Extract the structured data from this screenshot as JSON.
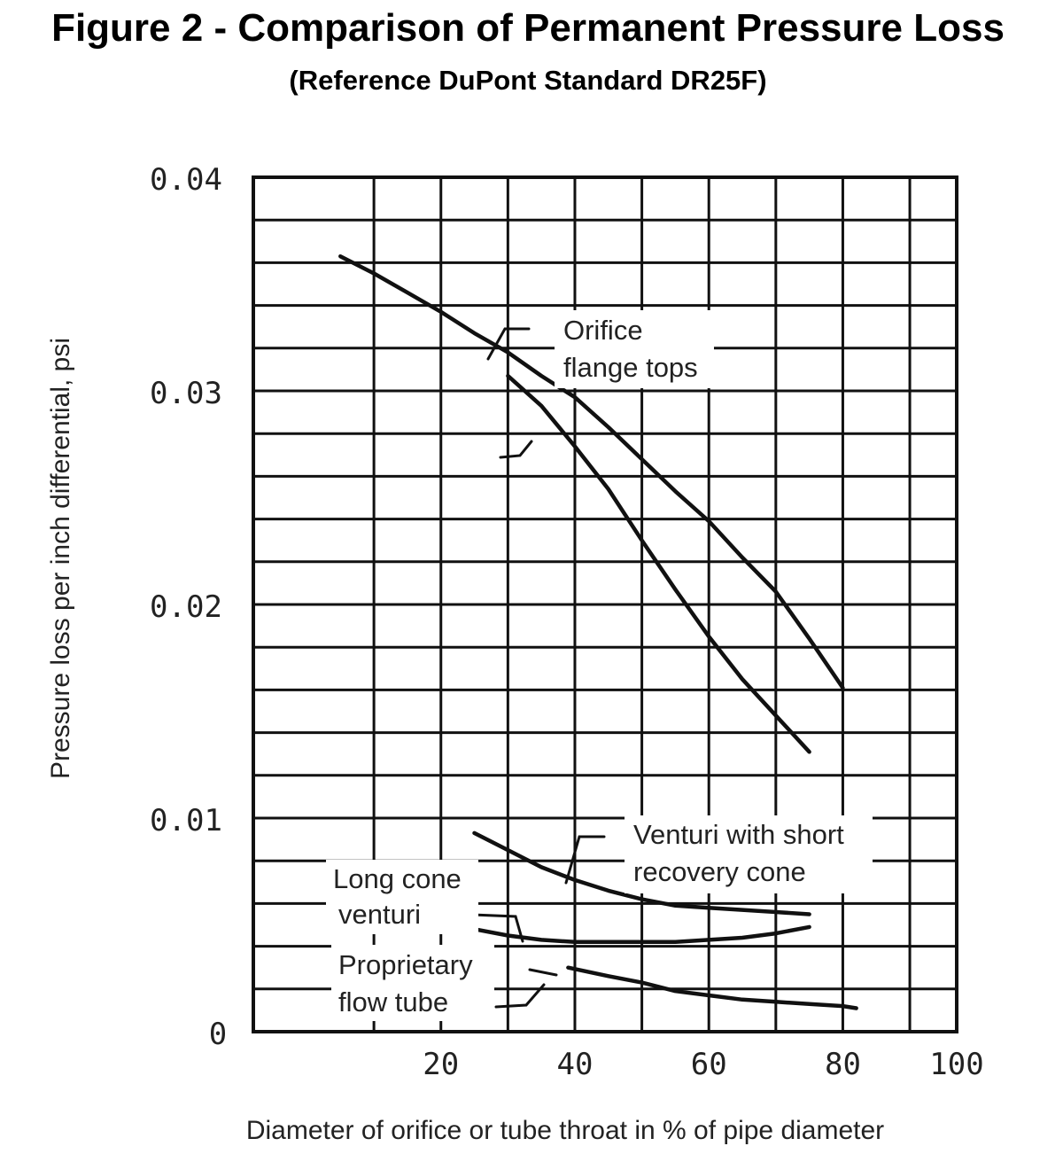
{
  "chart_data": {
    "type": "line",
    "title": "Figure 2 - Comparison of Permanent Pressure Loss",
    "subtitle": "(Reference DuPont Standard DR25F)",
    "xlabel": "Diameter of orifice or tube throat in % of pipe diameter",
    "ylabel": "Pressure loss per inch differential, psi",
    "xlim": [
      0,
      100
    ],
    "ylim": [
      0,
      0.04
    ],
    "x_ticks": [
      "20",
      "40",
      "60",
      "80",
      "100"
    ],
    "y_ticks": [
      "0",
      "0.01",
      "0.02",
      "0.03",
      "0.04"
    ],
    "grid": true,
    "legend": "none",
    "series": [
      {
        "name": "Orifice flange tops",
        "x": [
          5,
          10,
          15,
          20,
          25,
          30,
          35,
          40,
          45,
          50,
          55,
          60,
          65,
          70,
          75,
          80
        ],
        "y": [
          0.0363,
          0.0355,
          0.0346,
          0.0337,
          0.0327,
          0.0318,
          0.0307,
          0.0297,
          0.0283,
          0.0268,
          0.0253,
          0.0239,
          0.0222,
          0.0206,
          0.0184,
          0.0161
        ]
      },
      {
        "name": "",
        "x": [
          30,
          35,
          40,
          45,
          50,
          55,
          60,
          65,
          70,
          75
        ],
        "y": [
          0.0307,
          0.0293,
          0.0274,
          0.0254,
          0.023,
          0.0207,
          0.0185,
          0.0165,
          0.0148,
          0.0131
        ]
      },
      {
        "name": "Venturi with short recovery cone",
        "x": [
          25,
          30,
          35,
          40,
          45,
          50,
          55,
          60,
          65,
          70,
          75
        ],
        "y": [
          0.0093,
          0.0085,
          0.0077,
          0.0071,
          0.0066,
          0.0062,
          0.0059,
          0.0058,
          0.0057,
          0.0056,
          0.0055
        ]
      },
      {
        "name": "Long cone venturi",
        "x": [
          25,
          30,
          35,
          40,
          45,
          50,
          55,
          60,
          65,
          70,
          75
        ],
        "y": [
          0.0048,
          0.0045,
          0.0043,
          0.0042,
          0.0042,
          0.0042,
          0.0042,
          0.0043,
          0.0044,
          0.0046,
          0.0049
        ]
      },
      {
        "name": "Proprietary flow tube",
        "x": [
          39,
          45,
          50,
          55,
          60,
          65,
          70,
          75,
          80,
          82
        ],
        "y": [
          0.003,
          0.0026,
          0.0023,
          0.0019,
          0.0017,
          0.0015,
          0.0014,
          0.0013,
          0.0012,
          0.0011
        ]
      }
    ],
    "annotations": [
      {
        "id": "orifice",
        "lines": [
          "Orifice",
          "flange tops"
        ]
      },
      {
        "id": "venturi-short",
        "lines": [
          "Venturi with short",
          "recovery cone"
        ]
      },
      {
        "id": "long-cone",
        "lines": [
          "Long cone",
          "venturi"
        ]
      },
      {
        "id": "proprietary",
        "lines": [
          "Proprietary",
          "flow tube"
        ]
      }
    ]
  }
}
